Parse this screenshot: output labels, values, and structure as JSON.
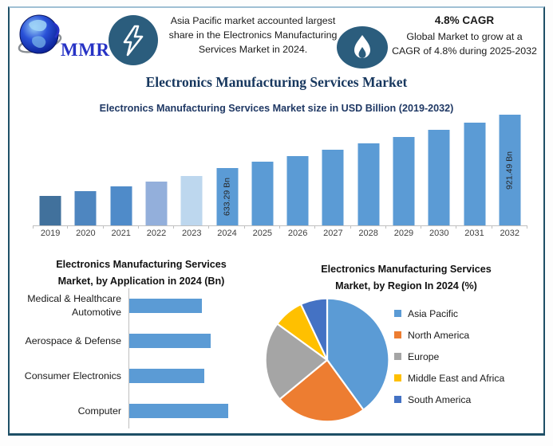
{
  "header": {
    "logo": {
      "text": "MMR"
    },
    "callout_apac": {
      "lines": [
        "Asia Pacific market accounted largest",
        "share in the Electronics Manufacturing",
        "Services Market in 2024."
      ]
    },
    "callout_cagr": {
      "headline": "4.8% CAGR",
      "lines": [
        "Global Market to grow at a",
        "CAGR of 4.8% during 2025-2032"
      ]
    }
  },
  "main_title": "Electronics Manufacturing Services Market",
  "icons": {
    "logo": "globe-logo-icon",
    "badge1": "lightning-bolt-icon",
    "badge2": "flame-icon"
  },
  "colors": {
    "accent_navy": "#17375E",
    "badge_circle": "#2B5D7D",
    "bar_blue": "#5B9BD5",
    "axis_gray": "#BFBFBF",
    "frame_border": "#1E4F66"
  },
  "chart_data": [
    {
      "type": "bar",
      "title": "Electronics Manufacturing Services Market size in USD Billion (2019-2032)",
      "ylabel": "USD Billion",
      "value_axis": "hidden",
      "bars": [
        {
          "year": "2019",
          "value": 480,
          "color": "#41719C"
        },
        {
          "year": "2020",
          "value": 504,
          "color": "#4E86C0",
          "pattern": "dots"
        },
        {
          "year": "2021",
          "value": 530,
          "color": "#4F8BC9"
        },
        {
          "year": "2022",
          "value": 559,
          "color": "#93AFDB"
        },
        {
          "year": "2023",
          "value": 586,
          "color": "#BDD7EE"
        },
        {
          "year": "2024",
          "value": 633.29,
          "color": "#5B9BD5",
          "label": "633.29 Bn"
        },
        {
          "year": "2025",
          "value": 663.7,
          "color": "#5B9BD5"
        },
        {
          "year": "2026",
          "value": 695.6,
          "color": "#5B9BD5"
        },
        {
          "year": "2027",
          "value": 729.0,
          "color": "#5B9BD5"
        },
        {
          "year": "2028",
          "value": 763.9,
          "color": "#5B9BD5"
        },
        {
          "year": "2029",
          "value": 800.6,
          "color": "#5B9BD5"
        },
        {
          "year": "2030",
          "value": 839.0,
          "color": "#5B9BD5"
        },
        {
          "year": "2031",
          "value": 879.3,
          "color": "#5B9BD5"
        },
        {
          "year": "2032",
          "value": 921.49,
          "color": "#5B9BD5",
          "label": "921.49 Bn"
        }
      ],
      "labeled_years": [
        "2024",
        "2032"
      ]
    },
    {
      "type": "bar",
      "orientation": "horizontal",
      "title_lines": [
        "Electronics Manufacturing Services",
        "Market, by Application in 2024 (Bn)"
      ],
      "bar_color": "#5B9BD5",
      "value_labels": "none",
      "bars": [
        {
          "label_lines": [
            "Medical & Healthcare",
            "Automotive"
          ],
          "relative_value": 73
        },
        {
          "label_lines": [
            "Aerospace & Defense"
          ],
          "relative_value": 82
        },
        {
          "label_lines": [
            "Consumer Electronics"
          ],
          "relative_value": 76
        },
        {
          "label_lines": [
            "Computer"
          ],
          "relative_value": 100
        }
      ]
    },
    {
      "type": "pie",
      "title_lines": [
        "Electronics Manufacturing Services",
        "Market, by Region In 2024 (%)"
      ],
      "legend_position": "right",
      "slices": [
        {
          "label": "Asia Pacific",
          "value_pct": 40,
          "color": "#5B9BD5"
        },
        {
          "label": "North America",
          "value_pct": 24,
          "color": "#ED7D31"
        },
        {
          "label": "Europe",
          "value_pct": 21,
          "color": "#A5A5A5"
        },
        {
          "label": "Middle East and Africa",
          "value_pct": 8,
          "color": "#FFC000"
        },
        {
          "label": "South America",
          "value_pct": 7,
          "color": "#4472C4"
        }
      ]
    }
  ]
}
